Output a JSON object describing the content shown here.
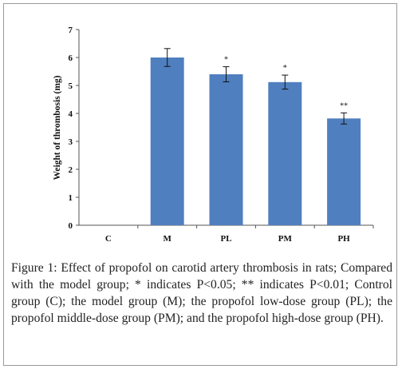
{
  "chart_data": {
    "type": "bar",
    "categories": [
      "C",
      "M",
      "PL",
      "PM",
      "PH"
    ],
    "values": [
      0,
      6.0,
      5.4,
      5.12,
      3.82
    ],
    "errors": [
      0,
      0.32,
      0.27,
      0.25,
      0.2
    ],
    "significance": [
      "",
      "",
      "*",
      "*",
      "**"
    ],
    "ylabel": "Weight of thrombosis (mg)",
    "xlabel": "",
    "ylim": [
      0,
      7
    ],
    "yticks": [
      "0",
      "1",
      "2",
      "3",
      "4",
      "5",
      "6",
      "7"
    ],
    "bar_color": "#4f7fbf",
    "grid": false
  },
  "caption": {
    "label": "Figure 1:",
    "text": " Effect of propofol on carotid artery thrombosis in rats; Compared with the model group; * indicates P<0.05; ** indicates P<0.01; Control group (C); the model group (M); the propofol low-dose group (PL); the propofol middle-dose group (PM); and the propofol high-dose group (PH)."
  }
}
